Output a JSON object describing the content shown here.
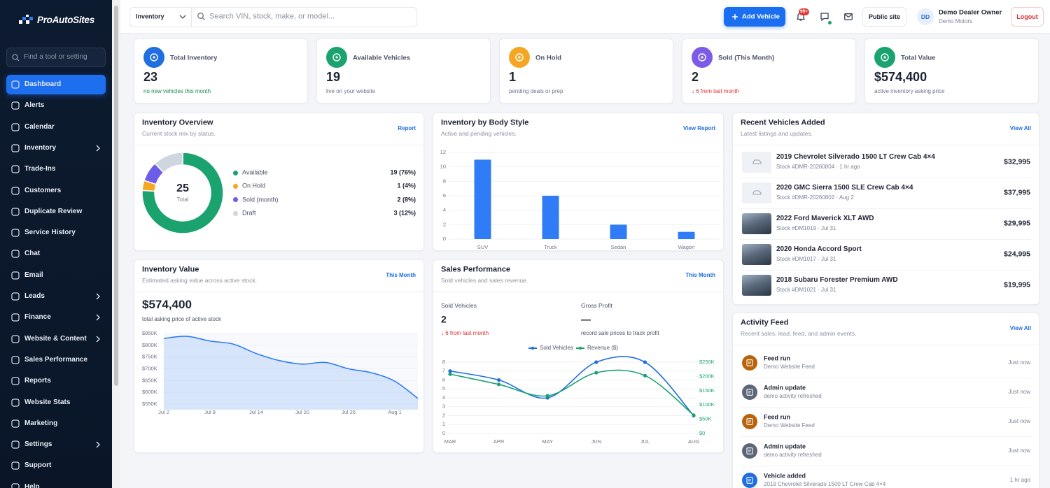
{
  "sidebar": {
    "brand": "ProAutoSites",
    "search_placeholder": "Find a tool or setting",
    "nav": [
      {
        "label": "Dashboard",
        "active": true
      },
      {
        "label": "Alerts"
      },
      {
        "label": "Calendar"
      },
      {
        "label": "Inventory",
        "submenu": true
      },
      {
        "label": "Trade-Ins"
      },
      {
        "label": "Customers"
      },
      {
        "label": "Duplicate Review"
      },
      {
        "label": "Service History"
      },
      {
        "label": "Chat"
      },
      {
        "label": "Email"
      },
      {
        "label": "Leads",
        "submenu": true
      },
      {
        "label": "Finance",
        "submenu": true
      },
      {
        "label": "Website & Content",
        "submenu": true
      },
      {
        "label": "Sales Performance"
      },
      {
        "label": "Reports"
      },
      {
        "label": "Website Stats"
      },
      {
        "label": "Marketing"
      },
      {
        "label": "Settings",
        "submenu": true
      },
      {
        "label": "Support"
      },
      {
        "label": "Help"
      }
    ]
  },
  "topbar": {
    "inventory_select": "Inventory",
    "search_placeholder": "Search VIN, stock, make, or model...",
    "add_button": "Add Vehicle",
    "notification_badge": "99+",
    "public_site": "Public site",
    "avatar": "DD",
    "user_name": "Demo Dealer Owner",
    "dealer": "Demo Motors",
    "logout": "Logout"
  },
  "stats": [
    {
      "label": "Total Inventory",
      "value": 23,
      "note": "no new vehicles this month",
      "color": "#1f6fe0",
      "note_color": "#1a8a4f"
    },
    {
      "label": "Available Vehicles",
      "value": 19,
      "note": "live on your website",
      "color": "#1aa36f",
      "note_color": "#6b7486"
    },
    {
      "label": "On Hold",
      "value": 1,
      "note": "pending deals or prep",
      "color": "#f5a623",
      "note_color": "#6b7486"
    },
    {
      "label": "Sold (This Month)",
      "value": 2,
      "note": "↓ 6 from last month",
      "color": "#7c5ce7",
      "note_color": "#d93030"
    },
    {
      "label": "Total Value",
      "value": "$574,400",
      "note": "active inventory asking price",
      "color": "#1aa36f",
      "note_color": "#6b7486"
    }
  ],
  "chart_data": [
    {
      "type": "donut",
      "title": "Inventory Overview",
      "subtitle": "Current stock mix by status.",
      "link": "Report",
      "categories": [
        "Available",
        "On Hold",
        "Sold (month)",
        "Draft"
      ],
      "values": [
        19,
        1,
        2,
        3
      ],
      "value_labels": [
        "19 (76%)",
        "1 (4%)",
        "2 (8%)",
        "3 (12%)"
      ],
      "colors": [
        "#1aa36f",
        "#f5a623",
        "#6c5ce7",
        "#cfd6df"
      ],
      "total": 25,
      "total_label": "Total"
    },
    {
      "type": "bar",
      "title": "Inventory by Body Style",
      "subtitle": "Active and pending vehicles.",
      "link": "View Report",
      "categories": [
        "SUV",
        "Truck",
        "Sedan",
        "Wagon"
      ],
      "values": [
        11,
        6,
        2,
        1
      ],
      "color": "#2f7cf6",
      "ylim": [
        0,
        12
      ],
      "yticks": [
        0,
        2,
        4,
        6,
        8,
        10,
        12
      ],
      "grid": true
    },
    {
      "type": "area",
      "title": "Inventory Value",
      "subtitle": "Estimated asking value across active stock.",
      "link": "This Month",
      "headline": "$574,400",
      "headline_note": "total asking price of active stock",
      "categories": [
        "Jul 2",
        null,
        "Jul 8",
        null,
        "Jul 14",
        null,
        "Jul 20",
        null,
        "Jul 26",
        null,
        "Aug 1",
        null
      ],
      "values": [
        829000,
        838000,
        818000,
        805000,
        765000,
        735000,
        720000,
        727000,
        700000,
        683000,
        647000,
        574000
      ],
      "color": "#2f7cf6",
      "ylim": [
        550000,
        850000
      ],
      "yticks": [
        {
          "value": 550000,
          "label": "$550K"
        },
        {
          "value": 600000,
          "label": "$600K"
        },
        {
          "value": 650000,
          "label": "$650K"
        },
        {
          "value": 700000,
          "label": "$700K"
        },
        {
          "value": 750000,
          "label": "$750K"
        },
        {
          "value": 800000,
          "label": "$800K"
        },
        {
          "value": 850000,
          "label": "$850K"
        }
      ],
      "grid": true
    },
    {
      "type": "line",
      "title": "Sales Performance",
      "subtitle": "Sold vehicles and sales revenue.",
      "link": "This Month",
      "summary": [
        {
          "label": "Sold Vehicles",
          "value": 2,
          "note": "↓ 6 from last month",
          "note_color": "#d93030"
        },
        {
          "label": "Gross Profit",
          "value": "—",
          "note": "record sale prices to track profit",
          "note_color": "#4a5365"
        }
      ],
      "categories": [
        "MAR",
        "APR",
        "MAY",
        "JUN",
        "JUL",
        "AUG"
      ],
      "series": [
        {
          "name": "Sold Vehicles",
          "color": "#1f6fe0",
          "values": [
            7,
            6,
            4,
            8,
            8,
            2
          ]
        },
        {
          "name": "Revenue ($)",
          "color": "#1aa36f",
          "axis": "y2",
          "values": [
            208000,
            172000,
            132000,
            213000,
            203000,
            64000
          ]
        }
      ],
      "ylim": [
        0,
        8
      ],
      "yticks": [
        0,
        1,
        2,
        3,
        4,
        5,
        6,
        7,
        8
      ],
      "y2lim": [
        0,
        250000
      ],
      "y2ticks": [
        {
          "value": 0,
          "label": "$0"
        },
        {
          "value": 50000,
          "label": "$50K"
        },
        {
          "value": 100000,
          "label": "$100K"
        },
        {
          "value": 150000,
          "label": "$150K"
        },
        {
          "value": 200000,
          "label": "$200K"
        },
        {
          "value": 250000,
          "label": "$250K"
        }
      ],
      "grid": true,
      "legend": "top"
    }
  ],
  "recent_vehicles": {
    "title": "Recent Vehicles Added",
    "subtitle": "Latest listings and updates.",
    "link": "View All",
    "items": [
      {
        "title": "2019 Chevrolet Silverado 1500 LT Crew Cab 4×4",
        "stock": "Stock #DMR-20260804 · 1 hr ago",
        "price": "$32,995",
        "photo": false
      },
      {
        "title": "2020 GMC Sierra 1500 SLE Crew Cab 4×4",
        "stock": "Stock #DMR-20260802 · Aug 2",
        "price": "$37,995",
        "photo": false
      },
      {
        "title": "2022 Ford Maverick XLT AWD",
        "stock": "Stock #DM1019 · Jul 31",
        "price": "$29,995",
        "photo": true
      },
      {
        "title": "2020 Honda Accord Sport",
        "stock": "Stock #DM1017 · Jul 31",
        "price": "$24,995",
        "photo": true
      },
      {
        "title": "2018 Subaru Forester Premium AWD",
        "stock": "Stock #DM1021 · Jul 31",
        "price": "$19,995",
        "photo": true
      }
    ]
  },
  "activity_feed": {
    "title": "Activity Feed",
    "subtitle": "Recent sales, lead, feed, and admin events.",
    "link": "View All",
    "items": [
      {
        "title": "Feed run",
        "detail": "Demo Website Feed",
        "time": "Just now",
        "color": "#b8640c"
      },
      {
        "title": "Admin update",
        "detail": "demo activity refreshed",
        "time": "Just now",
        "color": "#5d6679"
      },
      {
        "title": "Feed run",
        "detail": "Demo Website Feed",
        "time": "Just now",
        "color": "#b8640c"
      },
      {
        "title": "Admin update",
        "detail": "demo activity refreshed",
        "time": "Just now",
        "color": "#5d6679"
      },
      {
        "title": "Vehicle added",
        "detail": "2019 Chevrolet Silverado 1500 LT Crew Cab 4×4",
        "time": "1 hr ago",
        "color": "#1f6fe0"
      }
    ]
  }
}
